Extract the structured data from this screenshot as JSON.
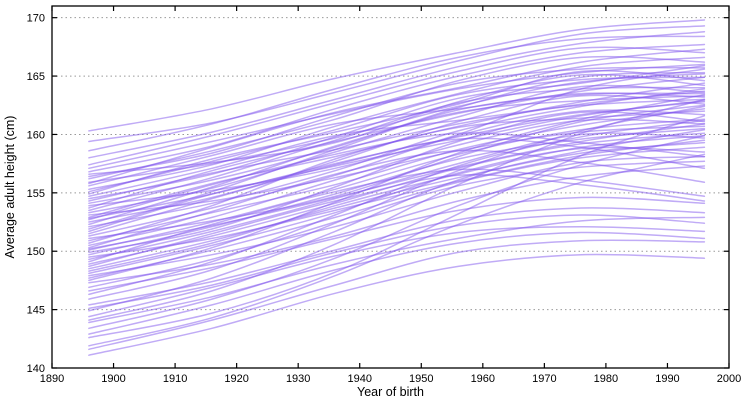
{
  "chart_data": {
    "type": "line",
    "title": "",
    "xlabel": "Year of birth",
    "ylabel": "Average adult height (cm)",
    "xlim": [
      1890,
      2000
    ],
    "ylim": [
      140,
      171
    ],
    "x_ticks": [
      1890,
      1900,
      1910,
      1920,
      1930,
      1940,
      1950,
      1960,
      1970,
      1980,
      1990,
      2000
    ],
    "y_ticks": [
      140,
      145,
      150,
      155,
      160,
      165,
      170
    ],
    "grid": "horizontal-dotted",
    "grid_color": "#999999",
    "axis_color": "#000000",
    "line_color": "#8257ee",
    "line_opacity": 0.5,
    "line_width": 1.5,
    "legend": "none",
    "x": [
      1896,
      1916,
      1936,
      1956,
      1976,
      1996
    ],
    "series": [
      [
        160.3,
        162.2,
        164.8,
        167.0,
        169.0,
        169.8
      ],
      [
        159.4,
        161.0,
        163.6,
        166.3,
        168.6,
        169.3
      ],
      [
        158.6,
        160.9,
        163.9,
        166.6,
        168.2,
        168.4
      ],
      [
        158.0,
        160.2,
        163.0,
        165.8,
        167.8,
        168.8
      ],
      [
        157.4,
        159.9,
        162.7,
        165.4,
        167.4,
        167.0
      ],
      [
        156.8,
        159.0,
        162.2,
        165.0,
        167.0,
        167.7
      ],
      [
        156.2,
        158.6,
        161.3,
        164.6,
        166.6,
        166.2
      ],
      [
        155.8,
        158.9,
        161.9,
        164.0,
        166.2,
        167.3
      ],
      [
        155.3,
        157.4,
        160.7,
        163.5,
        165.8,
        166.6
      ],
      [
        154.9,
        157.9,
        160.2,
        162.6,
        165.4,
        164.6
      ],
      [
        154.5,
        156.6,
        159.8,
        163.1,
        164.4,
        165.9
      ],
      [
        154.1,
        156.1,
        158.9,
        162.3,
        164.9,
        165.3
      ],
      [
        153.7,
        156.9,
        159.4,
        161.8,
        163.7,
        164.9
      ],
      [
        153.3,
        155.4,
        158.5,
        161.5,
        164.1,
        163.6
      ],
      [
        152.9,
        155.8,
        158.1,
        160.7,
        162.8,
        164.4
      ],
      [
        152.5,
        154.6,
        157.7,
        161.1,
        163.3,
        162.6
      ],
      [
        152.1,
        154.1,
        156.9,
        160.3,
        162.4,
        163.9
      ],
      [
        151.7,
        154.9,
        157.3,
        159.5,
        161.6,
        162.9
      ],
      [
        151.3,
        153.7,
        156.5,
        159.9,
        162.0,
        161.7
      ],
      [
        150.9,
        153.3,
        155.7,
        158.7,
        160.8,
        162.2
      ],
      [
        150.5,
        152.9,
        156.1,
        159.1,
        161.2,
        160.9
      ],
      [
        150.1,
        152.5,
        155.3,
        158.3,
        160.4,
        161.3
      ],
      [
        149.7,
        152.1,
        154.9,
        157.9,
        159.6,
        160.5
      ],
      [
        149.3,
        151.7,
        154.5,
        157.5,
        160.0,
        159.7
      ],
      [
        148.9,
        151.3,
        154.1,
        157.1,
        159.2,
        160.1
      ],
      [
        148.5,
        150.9,
        153.7,
        156.3,
        158.4,
        159.3
      ],
      [
        148.1,
        150.5,
        153.3,
        156.7,
        158.8,
        158.5
      ],
      [
        147.7,
        150.1,
        152.9,
        155.9,
        158.0,
        158.9
      ],
      [
        153.9,
        155.2,
        157.1,
        160.0,
        163.9,
        165.6
      ],
      [
        155.6,
        158.2,
        160.9,
        162.2,
        163.5,
        163.2
      ],
      [
        156.6,
        157.6,
        159.3,
        162.8,
        165.1,
        164.2
      ],
      [
        152.3,
        155.5,
        159.0,
        161.9,
        162.9,
        163.3
      ],
      [
        151.1,
        152.6,
        154.7,
        158.1,
        161.1,
        162.5
      ],
      [
        154.7,
        157.1,
        159.9,
        161.2,
        162.5,
        163.0
      ],
      [
        149.9,
        151.9,
        155.5,
        159.4,
        161.9,
        161.1
      ],
      [
        150.7,
        153.9,
        157.9,
        160.6,
        161.4,
        162.0
      ],
      [
        153.1,
        154.3,
        156.3,
        158.6,
        160.2,
        160.7
      ],
      [
        147.9,
        149.7,
        152.1,
        155.1,
        157.6,
        158.1
      ],
      [
        146.9,
        149.3,
        152.5,
        155.6,
        157.2,
        157.7
      ],
      [
        147.3,
        148.9,
        151.3,
        154.3,
        156.4,
        157.3
      ],
      [
        144.1,
        146.6,
        150.6,
        155.7,
        160.1,
        163.0
      ],
      [
        142.6,
        144.7,
        148.2,
        153.2,
        158.2,
        161.6
      ],
      [
        145.9,
        148.4,
        152.4,
        156.9,
        160.3,
        162.4
      ],
      [
        147.5,
        150.3,
        154.2,
        158.4,
        161.3,
        163.4
      ],
      [
        143.4,
        145.9,
        149.4,
        153.9,
        157.4,
        159.9
      ],
      [
        144.9,
        147.7,
        151.7,
        156.1,
        158.6,
        160.4
      ],
      [
        141.9,
        144.3,
        147.9,
        152.3,
        155.9,
        158.3
      ],
      [
        146.3,
        149.1,
        153.1,
        157.3,
        159.8,
        161.2
      ],
      [
        141.1,
        143.4,
        146.4,
        148.7,
        149.7,
        149.4
      ],
      [
        141.6,
        144.1,
        147.1,
        149.9,
        150.9,
        150.8
      ],
      [
        142.9,
        145.4,
        148.4,
        150.7,
        151.6,
        151.1
      ],
      [
        144.4,
        146.9,
        149.6,
        151.6,
        152.1,
        151.7
      ],
      [
        143.9,
        146.1,
        148.9,
        151.1,
        152.6,
        152.9
      ],
      [
        145.4,
        147.4,
        150.1,
        152.7,
        153.7,
        153.3
      ],
      [
        146.6,
        148.6,
        151.1,
        153.5,
        154.6,
        154.1
      ],
      [
        145.1,
        147.1,
        149.9,
        152.2,
        153.1,
        152.4
      ],
      [
        150.3,
        153.4,
        156.6,
        158.6,
        157.6,
        155.9
      ],
      [
        151.5,
        154.5,
        157.4,
        159.6,
        158.9,
        157.1
      ],
      [
        149.1,
        152.3,
        155.1,
        157.0,
        156.1,
        154.7
      ],
      [
        152.7,
        155.7,
        158.3,
        160.1,
        159.3,
        158.1
      ],
      [
        148.7,
        151.5,
        154.3,
        156.5,
        155.7,
        154.3
      ],
      [
        151.9,
        155.1,
        158.7,
        162.1,
        163.4,
        163.5
      ],
      [
        153.5,
        156.3,
        159.5,
        162.7,
        163.9,
        164.0
      ],
      [
        155.1,
        157.7,
        160.4,
        163.4,
        164.7,
        164.9
      ],
      [
        156.4,
        158.4,
        161.6,
        164.4,
        165.6,
        165.7
      ],
      [
        154.3,
        156.7,
        158.7,
        160.9,
        162.6,
        163.7
      ],
      [
        152.8,
        154.9,
        157.5,
        159.8,
        161.7,
        162.8
      ],
      [
        150.2,
        152.2,
        154.6,
        157.2,
        159.4,
        160.9
      ],
      [
        148.3,
        150.7,
        153.9,
        156.6,
        158.9,
        159.9
      ],
      [
        157.1,
        159.4,
        161.8,
        163.9,
        165.3,
        166.0
      ],
      [
        155.9,
        157.5,
        159.7,
        162.4,
        164.5,
        165.2
      ],
      [
        149.5,
        151.1,
        153.5,
        156.0,
        158.2,
        159.5
      ]
    ]
  }
}
